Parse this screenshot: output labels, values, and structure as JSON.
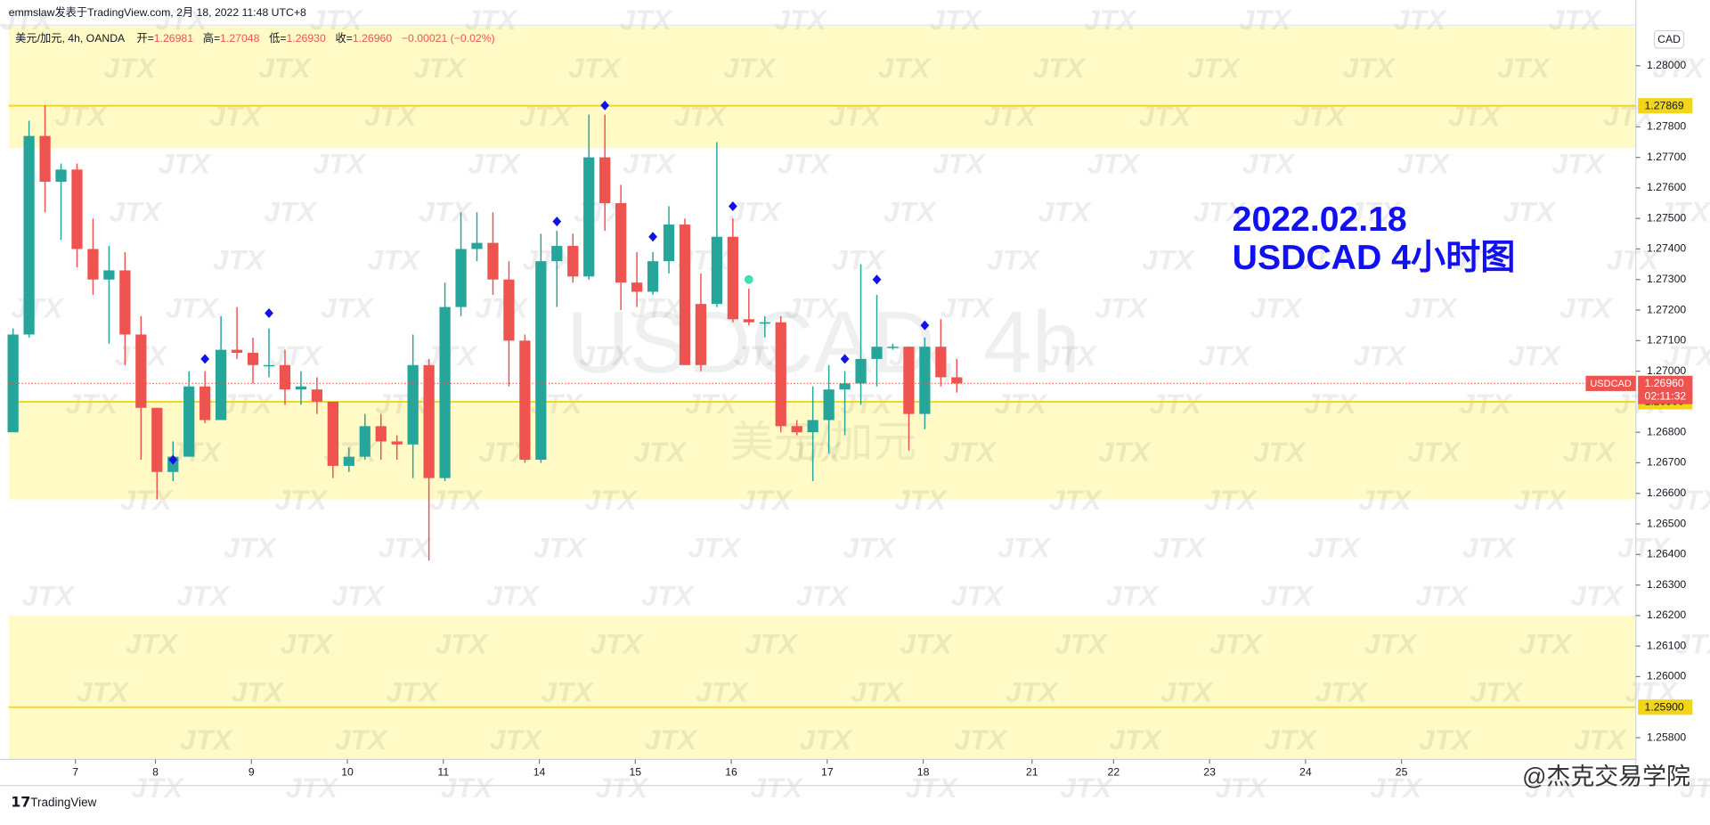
{
  "header": {
    "author_line": "emmslaw发表于TradingView.com,  2月 18, 2022 11:48 UTC+8"
  },
  "chart_data": {
    "type": "candlestick",
    "legend": {
      "symbol": "美元/加元, 4h, OANDA",
      "open_label": "开=",
      "open": "1.26981",
      "high_label": "高=",
      "high": "1.27048",
      "low_label": "低=",
      "low": "1.26930",
      "close_label": "收=",
      "close": "1.26960",
      "change": "−0.00021 (−0.02%)"
    },
    "annotation": [
      "2022.02.18",
      "USDCAD 4小时图"
    ],
    "watermark": [
      "USDCAD, 4h",
      "美元/加元"
    ],
    "currency": "CAD",
    "series": [
      {
        "name": "USDCAD",
        "up_color": "#26a69a",
        "down_color": "#ef5350",
        "open": [
          1.268,
          1.2712,
          1.2777,
          1.2762,
          1.2766,
          1.274,
          1.273,
          1.2733,
          1.2712,
          1.2688,
          1.2667,
          1.2672,
          1.2695,
          1.2684,
          1.2707,
          1.2706,
          1.2702,
          1.2702,
          1.2694,
          1.2694,
          1.269,
          1.2669,
          1.2672,
          1.2682,
          1.2677,
          1.2676,
          1.2702,
          1.2665,
          1.2721,
          1.274,
          1.2742,
          1.273,
          1.271,
          1.2671,
          1.2736,
          1.2741,
          1.2731,
          1.277,
          1.2755,
          1.2729,
          1.2726,
          1.2736,
          1.2748,
          1.2722,
          1.2722,
          1.2744,
          1.2717,
          1.2716,
          1.2716,
          1.2682,
          1.268,
          1.2684,
          1.2694,
          1.2696,
          1.2704,
          1.2708,
          1.2708,
          1.2686,
          1.2708,
          1.2698
        ],
        "high": [
          1.2714,
          1.2782,
          1.2787,
          1.2768,
          1.2768,
          1.275,
          1.2741,
          1.2739,
          1.2718,
          1.2688,
          1.2677,
          1.27,
          1.27,
          1.2718,
          1.2721,
          1.2711,
          1.2714,
          1.2707,
          1.27,
          1.2698,
          1.269,
          1.2675,
          1.2686,
          1.2686,
          1.2679,
          1.2712,
          1.2704,
          1.2729,
          1.2752,
          1.2752,
          1.2752,
          1.2736,
          1.2712,
          1.2745,
          1.2746,
          1.2745,
          1.2784,
          1.2784,
          1.2761,
          1.2739,
          1.2739,
          1.2754,
          1.275,
          1.2732,
          1.2775,
          1.275,
          1.2727,
          1.2718,
          1.2718,
          1.2684,
          1.2695,
          1.2702,
          1.27,
          1.2735,
          1.2725,
          1.2709,
          1.2708,
          1.2711,
          1.2717,
          1.2704
        ],
        "low": [
          1.268,
          1.2711,
          1.2752,
          1.2743,
          1.2734,
          1.2725,
          1.2709,
          1.2702,
          1.2671,
          1.2658,
          1.2664,
          1.2672,
          1.2683,
          1.2684,
          1.2704,
          1.2696,
          1.2698,
          1.2689,
          1.2689,
          1.2686,
          1.2665,
          1.2667,
          1.2671,
          1.2671,
          1.2671,
          1.2665,
          1.2638,
          1.2664,
          1.2718,
          1.2736,
          1.2725,
          1.2695,
          1.267,
          1.267,
          1.2721,
          1.2729,
          1.273,
          1.2746,
          1.272,
          1.2721,
          1.2725,
          1.2732,
          1.2702,
          1.27,
          1.2721,
          1.2716,
          1.2715,
          1.2711,
          1.268,
          1.2679,
          1.2664,
          1.2673,
          1.2679,
          1.2689,
          1.2695,
          1.2707,
          1.2674,
          1.2681,
          1.2695,
          1.2693
        ],
        "close": [
          1.2712,
          1.2777,
          1.2762,
          1.2766,
          1.274,
          1.273,
          1.2733,
          1.2712,
          1.2688,
          1.2667,
          1.2672,
          1.2695,
          1.2684,
          1.2707,
          1.2706,
          1.2702,
          1.2702,
          1.2694,
          1.2695,
          1.269,
          1.2669,
          1.2672,
          1.2682,
          1.2677,
          1.2676,
          1.2702,
          1.2665,
          1.2721,
          1.274,
          1.2742,
          1.273,
          1.271,
          1.2671,
          1.2736,
          1.2741,
          1.2731,
          1.277,
          1.2755,
          1.2729,
          1.2726,
          1.2736,
          1.2748,
          1.2702,
          1.2702,
          1.2744,
          1.2717,
          1.2716,
          1.2716,
          1.2682,
          1.268,
          1.2684,
          1.2694,
          1.2696,
          1.2704,
          1.2708,
          1.2708,
          1.2686,
          1.2708,
          1.2698,
          1.2696
        ]
      }
    ],
    "diamonds": {
      "color": "#1212e8",
      "x": [
        10,
        12,
        16,
        34,
        37,
        40,
        45,
        52,
        54,
        57
      ],
      "values": [
        1.2671,
        1.2704,
        1.2719,
        1.2749,
        1.2787,
        1.2744,
        1.2754,
        1.2704,
        1.273,
        1.2715
      ]
    },
    "circles": {
      "color": "#3de0b4",
      "x": [
        46
      ],
      "values": [
        1.273
      ]
    },
    "current_price": {
      "value": 1.2696,
      "label": "1.26960",
      "countdown": "02:11:32",
      "color": "#ef5350"
    },
    "levels": [
      {
        "value": 1.27869,
        "label": "1.27869"
      },
      {
        "value": 1.269,
        "label": "1.26900"
      },
      {
        "value": 1.259,
        "label": "1.25900"
      }
    ],
    "level_color": "#f2d518",
    "zones": [
      [
        1.2773,
        1.28129
      ],
      [
        1.2658,
        1.269
      ],
      [
        1.25729,
        1.262
      ]
    ],
    "zone_color": "#fffac6",
    "xlim": [
      -0.27,
      101.45
    ],
    "ylim": [
      1.25729,
      1.28129
    ],
    "xticks": [
      {
        "value": 3.9,
        "label": "7"
      },
      {
        "value": 8.9,
        "label": "8"
      },
      {
        "value": 14.9,
        "label": "9"
      },
      {
        "value": 20.9,
        "label": "10"
      },
      {
        "value": 26.9,
        "label": "11"
      },
      {
        "value": 32.9,
        "label": "14"
      },
      {
        "value": 38.9,
        "label": "15"
      },
      {
        "value": 44.9,
        "label": "16"
      },
      {
        "value": 50.9,
        "label": "17"
      },
      {
        "value": 56.9,
        "label": "18"
      },
      {
        "value": 63.7,
        "label": "21"
      },
      {
        "value": 68.8,
        "label": "22"
      },
      {
        "value": 74.8,
        "label": "23"
      },
      {
        "value": 80.8,
        "label": "24"
      },
      {
        "value": 86.8,
        "label": "25"
      }
    ],
    "yticks": [
      {
        "value": 1.28,
        "label": "1.28000"
      },
      {
        "value": 1.278,
        "label": "1.27800"
      },
      {
        "value": 1.277,
        "label": "1.27700"
      },
      {
        "value": 1.276,
        "label": "1.27600"
      },
      {
        "value": 1.275,
        "label": "1.27500"
      },
      {
        "value": 1.274,
        "label": "1.27400"
      },
      {
        "value": 1.273,
        "label": "1.27300"
      },
      {
        "value": 1.272,
        "label": "1.27200"
      },
      {
        "value": 1.271,
        "label": "1.27100"
      },
      {
        "value": 1.27,
        "label": "1.27000"
      },
      {
        "value": 1.268,
        "label": "1.26800"
      },
      {
        "value": 1.267,
        "label": "1.26700"
      },
      {
        "value": 1.266,
        "label": "1.26600"
      },
      {
        "value": 1.265,
        "label": "1.26500"
      },
      {
        "value": 1.264,
        "label": "1.26400"
      },
      {
        "value": 1.263,
        "label": "1.26300"
      },
      {
        "value": 1.262,
        "label": "1.26200"
      },
      {
        "value": 1.261,
        "label": "1.26100"
      },
      {
        "value": 1.26,
        "label": "1.26000"
      },
      {
        "value": 1.258,
        "label": "1.25800"
      }
    ]
  },
  "footer": {
    "brand": "TradingView",
    "watermark": "@杰克交易学院",
    "logo_text": "JTX"
  }
}
